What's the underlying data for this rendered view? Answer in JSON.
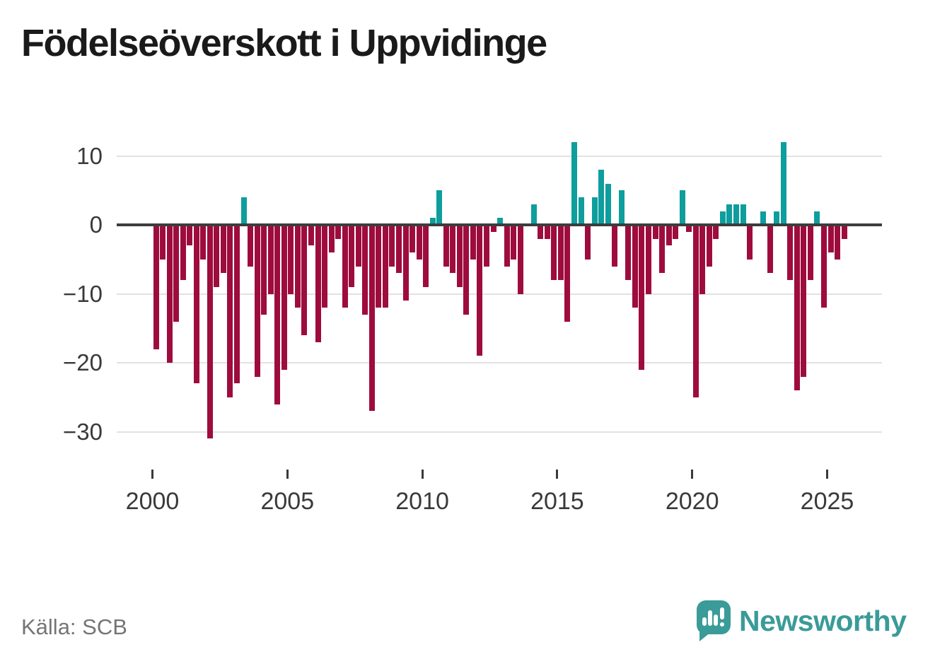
{
  "title": "Födelseöverskott i Uppvidinge",
  "source": "Källa: SCB",
  "logo": {
    "wordmark": "Newsworthy",
    "icon": "speech-bubble-bar-chart"
  },
  "colors": {
    "positive": "#0d9e9d",
    "negative": "#9e0c3d",
    "zero_line": "#3d3d3d",
    "gridline": "#e2e2e2",
    "axis_text": "#3a3a3a",
    "title_text": "#1a1a1a",
    "source_text": "#757575",
    "logo_teal": "#3a9b99"
  },
  "chart_data": {
    "type": "bar",
    "title": "Födelseöverskott i Uppvidinge",
    "xlabel": "",
    "ylabel": "",
    "x_unit": "quarter",
    "x_range": [
      "2000 Q1",
      "2025 Q3"
    ],
    "ylim": [
      -33,
      14
    ],
    "grid": "horizontal",
    "legend": "none",
    "y_ticks": [
      10,
      0,
      -10,
      -20,
      -30
    ],
    "y_tick_labels": [
      "10",
      "0",
      "−10",
      "−20",
      "−30"
    ],
    "x_tick_years": [
      2000,
      2005,
      2010,
      2015,
      2020,
      2025
    ],
    "values_by_year": {
      "2000": [
        -18,
        -5,
        -20,
        -14
      ],
      "2001": [
        -8,
        -3,
        -23,
        -5
      ],
      "2002": [
        -31,
        -9,
        -7,
        -25
      ],
      "2003": [
        -23,
        4,
        -6,
        -22
      ],
      "2004": [
        -13,
        -10,
        -26,
        -21
      ],
      "2005": [
        -10,
        -12,
        -16,
        -3
      ],
      "2006": [
        -17,
        -12,
        -4,
        -2
      ],
      "2007": [
        -12,
        -9,
        -6,
        -13
      ],
      "2008": [
        -27,
        -12,
        -12,
        -6
      ],
      "2009": [
        -7,
        -11,
        -4,
        -5
      ],
      "2010": [
        -9,
        1,
        5,
        -6
      ],
      "2011": [
        -7,
        -9,
        -13,
        -5
      ],
      "2012": [
        -19,
        -6,
        -1,
        1
      ],
      "2013": [
        -6,
        -5,
        -10,
        0
      ],
      "2014": [
        3,
        -2,
        -2,
        -8
      ],
      "2015": [
        -8,
        -14,
        12,
        4
      ],
      "2016": [
        -5,
        4,
        8,
        6
      ],
      "2017": [
        -6,
        5,
        -8,
        -12
      ],
      "2018": [
        -21,
        -10,
        -2,
        -7
      ],
      "2019": [
        -3,
        -2,
        5,
        -1
      ],
      "2020": [
        -25,
        -10,
        -6,
        -2
      ],
      "2021": [
        2,
        3,
        3,
        3
      ],
      "2022": [
        -5,
        0,
        2,
        -7
      ],
      "2023": [
        2,
        12,
        -8,
        -24
      ],
      "2024": [
        -22,
        -8,
        2,
        -12
      ],
      "2025": [
        -4,
        -5,
        -2
      ]
    }
  }
}
